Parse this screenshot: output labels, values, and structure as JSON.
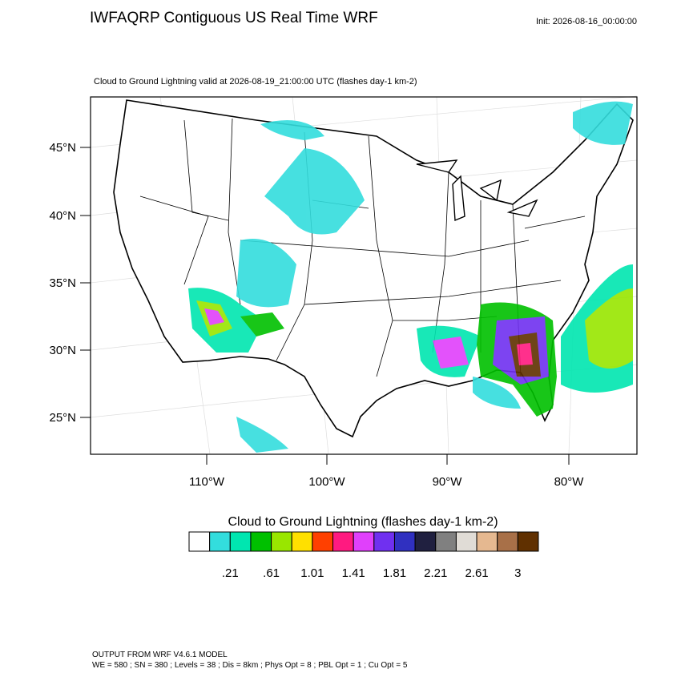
{
  "header": {
    "title": "IWFAQRP Contiguous US Real Time WRF",
    "init": "Init: 2026-08-16_00:00:00"
  },
  "map": {
    "subtitle": "Cloud to Ground Lightning valid at 2026-08-19_21:00:00 UTC   (flashes day-1 km-2)",
    "lat_labels": [
      "45°N",
      "40°N",
      "35°N",
      "30°N",
      "25°N"
    ],
    "lon_labels": [
      "110°W",
      "100°W",
      "90°W",
      "80°W"
    ]
  },
  "colorbar": {
    "title": "Cloud to Ground Lightning  (flashes day-1 km-2)",
    "colors": [
      "#ffffff",
      "#33dddd",
      "#00e6b0",
      "#00c000",
      "#99e600",
      "#ffe000",
      "#ff4000",
      "#ff1a80",
      "#e040fb",
      "#7030f0",
      "#3030c0",
      "#202040",
      "#808080",
      "#e0dcd6",
      "#e5b890",
      "#a87048",
      "#603000"
    ],
    "labels": [
      ".21",
      ".61",
      "1.01",
      "1.41",
      "1.81",
      "2.21",
      "2.61",
      "3"
    ]
  },
  "footer": {
    "lines": [
      "OUTPUT FROM WRF V4.6.1 MODEL",
      "WE = 580 ; SN = 380 ; Levels = 38 ; Dis = 8km ; Phys Opt = 8 ; PBL Opt = 1 ; Cu Opt = 5"
    ]
  }
}
